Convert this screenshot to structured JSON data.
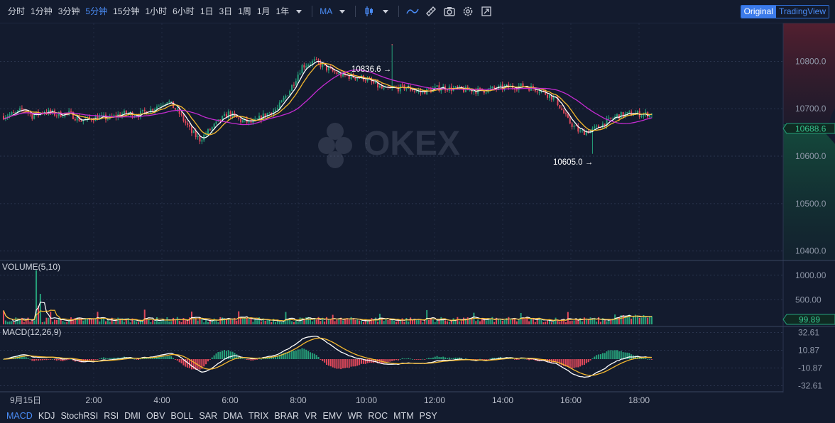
{
  "toolbar": {
    "intervals": [
      {
        "label": "分时",
        "active": false
      },
      {
        "label": "1分钟",
        "active": false
      },
      {
        "label": "3分钟",
        "active": false
      },
      {
        "label": "5分钟",
        "active": true
      },
      {
        "label": "15分钟",
        "active": false
      },
      {
        "label": "1小时",
        "active": false
      },
      {
        "label": "6小时",
        "active": false
      },
      {
        "label": "1日",
        "active": false
      },
      {
        "label": "3日",
        "active": false
      },
      {
        "label": "1周",
        "active": false
      },
      {
        "label": "1月",
        "active": false
      },
      {
        "label": "1年",
        "active": false
      }
    ],
    "study_label": "MA",
    "icons": [
      "candle-style-icon",
      "line-tool-icon",
      "draw-tool-icon",
      "camera-icon",
      "settings-icon",
      "fullscreen-icon"
    ],
    "view_original": "Original",
    "view_tradingview": "TradingView"
  },
  "watermark": "OKEX",
  "colors": {
    "up": "#26a07a",
    "down": "#e2495b",
    "ma_white": "#ffffff",
    "ma_yellow": "#f5b82e",
    "ma_magenta": "#c42bd1",
    "accent": "#4a8cf6"
  },
  "price_axis": {
    "ticks": [
      "10800.0",
      "10700.0",
      "10600.0",
      "10500.0",
      "10400.0"
    ],
    "current": "10688.6",
    "high_label": "10836.6 →",
    "low_label": "10605.0 →"
  },
  "volume_pane": {
    "title": "VOLUME(5,10)",
    "ticks": [
      "1000.00",
      "500.00"
    ],
    "current": "99.89"
  },
  "macd_pane": {
    "title": "MACD(12,26,9)",
    "ticks": [
      "32.61",
      "10.87",
      "-10.87",
      "-32.61"
    ]
  },
  "time_axis": [
    "9月15日",
    "2:00",
    "4:00",
    "6:00",
    "8:00",
    "10:00",
    "12:00",
    "14:00",
    "16:00",
    "18:00"
  ],
  "indicators": [
    {
      "label": "MACD",
      "active": true
    },
    {
      "label": "KDJ",
      "active": false
    },
    {
      "label": "StochRSI",
      "active": false
    },
    {
      "label": "RSI",
      "active": false
    },
    {
      "label": "DMI",
      "active": false
    },
    {
      "label": "OBV",
      "active": false
    },
    {
      "label": "BOLL",
      "active": false
    },
    {
      "label": "SAR",
      "active": false
    },
    {
      "label": "DMA",
      "active": false
    },
    {
      "label": "TRIX",
      "active": false
    },
    {
      "label": "BRAR",
      "active": false
    },
    {
      "label": "VR",
      "active": false
    },
    {
      "label": "EMV",
      "active": false
    },
    {
      "label": "WR",
      "active": false
    },
    {
      "label": "ROC",
      "active": false
    },
    {
      "label": "MTM",
      "active": false
    },
    {
      "label": "PSY",
      "active": false
    }
  ],
  "chart_data": {
    "type": "candlestick",
    "interval": "5分钟",
    "price_ylim": [
      10380,
      10880
    ],
    "price_anchors": [
      [
        0,
        10685
      ],
      [
        6,
        10690
      ],
      [
        10,
        10700
      ],
      [
        14,
        10685
      ],
      [
        20,
        10695
      ],
      [
        26,
        10688
      ],
      [
        32,
        10690
      ],
      [
        38,
        10675
      ],
      [
        46,
        10682
      ],
      [
        52,
        10680
      ],
      [
        58,
        10690
      ],
      [
        66,
        10688
      ],
      [
        72,
        10698
      ],
      [
        80,
        10718
      ],
      [
        86,
        10690
      ],
      [
        92,
        10650
      ],
      [
        96,
        10635
      ],
      [
        104,
        10668
      ],
      [
        110,
        10690
      ],
      [
        116,
        10675
      ],
      [
        122,
        10670
      ],
      [
        128,
        10688
      ],
      [
        134,
        10700
      ],
      [
        140,
        10740
      ],
      [
        146,
        10790
      ],
      [
        152,
        10800
      ],
      [
        160,
        10780
      ],
      [
        166,
        10770
      ],
      [
        176,
        10765
      ],
      [
        186,
        10740
      ],
      [
        196,
        10745
      ],
      [
        204,
        10735
      ],
      [
        214,
        10745
      ],
      [
        224,
        10740
      ],
      [
        234,
        10738
      ],
      [
        244,
        10745
      ],
      [
        254,
        10748
      ],
      [
        262,
        10740
      ],
      [
        270,
        10720
      ],
      [
        276,
        10675
      ],
      [
        282,
        10650
      ],
      [
        288,
        10655
      ],
      [
        294,
        10670
      ],
      [
        300,
        10685
      ],
      [
        308,
        10690
      ],
      [
        316,
        10688
      ]
    ],
    "high": 10836.6,
    "low": 10605.0,
    "last": 10688.6,
    "volume_ylim": [
      0,
      1300
    ],
    "volume_spike": 1100,
    "macd_ylim": [
      -40,
      40
    ]
  }
}
